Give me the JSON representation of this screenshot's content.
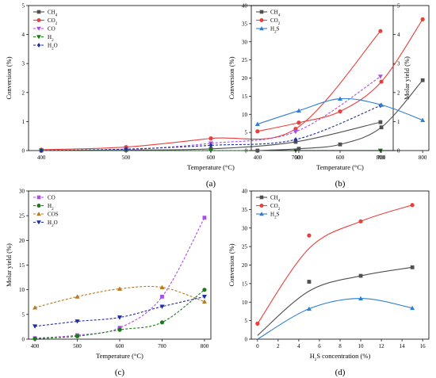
{
  "chart_data": [
    {
      "panel_label": "(a)",
      "type": "line",
      "xlabel": "Temperature (°C)",
      "ylabel": "Conversion (%)",
      "ylabel_right": "Molar yield (%)",
      "xlim": [
        400,
        800
      ],
      "ylim": [
        0,
        5
      ],
      "ylim_right": [
        0,
        5
      ],
      "xticks": [
        "400",
        "500",
        "600",
        "700",
        "800"
      ],
      "yticks": [
        "0",
        "1",
        "2",
        "3",
        "4",
        "5"
      ],
      "yticks_right": [
        "0",
        "1",
        "2",
        "3",
        "4",
        "5"
      ],
      "legend_position": "top-left",
      "series": [
        {
          "name": "CH4",
          "label_main": "CH",
          "label_sub": "4",
          "color": "#505050",
          "marker": "square",
          "dash": "solid",
          "smooth": true,
          "x": [
            400,
            500,
            600,
            700,
            800
          ],
          "y": [
            0.0,
            0.02,
            0.06,
            0.3,
            0.98
          ]
        },
        {
          "name": "CO2",
          "label_main": "CO",
          "label_sub": "2",
          "color": "#e8413c",
          "marker": "circle",
          "dash": "solid",
          "smooth": true,
          "x": [
            400,
            500,
            600,
            700,
            800
          ],
          "y": [
            0.03,
            0.12,
            0.42,
            0.75,
            4.12
          ]
        },
        {
          "name": "CO",
          "label_main": "CO",
          "label_sub": "",
          "color": "#a94ee6",
          "marker": "tri-down",
          "dash": "dashed",
          "smooth": true,
          "x": [
            400,
            500,
            600,
            700,
            800
          ],
          "y": [
            0.0,
            0.03,
            0.25,
            0.65,
            2.55
          ]
        },
        {
          "name": "H2",
          "label_main": "H",
          "label_sub": "2",
          "color": "#1a7a1a",
          "marker": "tri-down",
          "dash": "dashed",
          "smooth": true,
          "x": [
            400,
            500,
            600,
            700,
            800
          ],
          "y": [
            0.0,
            0.0,
            0.0,
            0.0,
            0.0
          ]
        },
        {
          "name": "H2O",
          "label_main": "H",
          "label_sub": "2",
          "label_tail": "O",
          "color": "#1f2fa0",
          "marker": "diamond",
          "dash": "dashed",
          "smooth": true,
          "x": [
            400,
            500,
            600,
            700,
            800
          ],
          "y": [
            0.0,
            0.05,
            0.18,
            0.38,
            1.55
          ]
        }
      ]
    },
    {
      "panel_label": "(b)",
      "type": "line",
      "xlabel": "Temperature (°C)",
      "ylabel": "Conversion (%)",
      "xlim": [
        400,
        800
      ],
      "ylim": [
        0,
        40
      ],
      "xticks": [
        "400",
        "500",
        "600",
        "700",
        "800"
      ],
      "yticks": [
        "0",
        "5",
        "10",
        "15",
        "20",
        "25",
        "30",
        "35",
        "40"
      ],
      "legend_position": "top-left",
      "series": [
        {
          "name": "CH4",
          "label_main": "CH",
          "label_sub": "4",
          "color": "#505050",
          "marker": "square",
          "dash": "solid",
          "smooth": true,
          "x": [
            400,
            500,
            600,
            700,
            800
          ],
          "y": [
            0.0,
            0.5,
            1.7,
            6.4,
            19.4
          ]
        },
        {
          "name": "CO2",
          "label_main": "CO",
          "label_sub": "2",
          "color": "#e8413c",
          "marker": "circle",
          "dash": "solid",
          "smooth": true,
          "x": [
            400,
            500,
            600,
            700,
            800
          ],
          "y": [
            5.3,
            7.7,
            10.8,
            19.0,
            36.2
          ]
        },
        {
          "name": "H2S",
          "label_main": "H",
          "label_sub": "2",
          "label_tail": "S",
          "color": "#2f7fd3",
          "marker": "tri-up",
          "dash": "solid",
          "smooth": true,
          "x": [
            400,
            500,
            600,
            700,
            800
          ],
          "y": [
            7.3,
            11.0,
            14.3,
            12.6,
            8.4
          ]
        }
      ]
    },
    {
      "panel_label": "(c)",
      "type": "line",
      "xlabel": "Temperature (°C)",
      "ylabel": "Molar yield (%)",
      "xlim": [
        400,
        800
      ],
      "ylim": [
        0,
        30
      ],
      "xticks": [
        "400",
        "500",
        "600",
        "700",
        "800"
      ],
      "yticks": [
        "0",
        "5",
        "10",
        "15",
        "20",
        "25",
        "30"
      ],
      "legend_position": "top-left",
      "series": [
        {
          "name": "CO",
          "label_main": "CO",
          "label_sub": "",
          "color": "#a94ee6",
          "marker": "square",
          "dash": "dashed",
          "smooth": true,
          "x": [
            400,
            500,
            600,
            700,
            800
          ],
          "y": [
            0.2,
            0.8,
            2.3,
            8.6,
            24.6
          ]
        },
        {
          "name": "H2",
          "label_main": "H",
          "label_sub": "2",
          "color": "#1a7a1a",
          "marker": "circle",
          "dash": "dashed",
          "smooth": true,
          "x": [
            400,
            500,
            600,
            700,
            800
          ],
          "y": [
            0.1,
            0.6,
            1.9,
            3.4,
            10.0
          ]
        },
        {
          "name": "COS",
          "label_main": "COS",
          "label_sub": "",
          "color": "#b87a1c",
          "marker": "tri-up",
          "dash": "dashed",
          "smooth": true,
          "x": [
            400,
            500,
            600,
            700,
            800
          ],
          "y": [
            6.4,
            8.6,
            10.2,
            10.5,
            7.6
          ]
        },
        {
          "name": "H2O",
          "label_main": "H",
          "label_sub": "2",
          "label_tail": "O",
          "color": "#1f2fa0",
          "marker": "tri-down",
          "dash": "dashed",
          "smooth": true,
          "x": [
            400,
            500,
            600,
            700,
            800
          ],
          "y": [
            2.6,
            3.6,
            4.4,
            6.6,
            8.6
          ]
        }
      ]
    },
    {
      "panel_label": "(d)",
      "type": "line",
      "xlabel": "H2S concentration (%)",
      "xlabel_main": "H",
      "xlabel_sub": "2",
      "xlabel_tail": "S concentration (%)",
      "ylabel": "Conversion (%)",
      "xlim": [
        0,
        16
      ],
      "ylim": [
        0,
        40
      ],
      "xticks": [
        "0",
        "2",
        "4",
        "6",
        "8",
        "10",
        "12",
        "14",
        "16"
      ],
      "yticks": [
        "0",
        "5",
        "10",
        "15",
        "20",
        "25",
        "30",
        "35",
        "40"
      ],
      "legend_position": "top-left",
      "series": [
        {
          "name": "CH4",
          "label_main": "CH",
          "label_sub": "4",
          "color": "#505050",
          "marker": "square",
          "dash": "solid",
          "smooth": true,
          "x": [
            5,
            10,
            15
          ],
          "y": [
            15.5,
            17.1,
            19.4
          ],
          "curve_x": [
            0,
            5,
            10,
            15
          ],
          "curve_y": [
            1.0,
            13.0,
            17.1,
            19.4
          ]
        },
        {
          "name": "CO2",
          "label_main": "CO",
          "label_sub": "2",
          "color": "#e8413c",
          "marker": "circle",
          "dash": "solid",
          "smooth": true,
          "x": [
            0,
            5,
            10,
            15
          ],
          "y": [
            4.2,
            28.0,
            31.8,
            36.2
          ],
          "curve_x": [
            0,
            5,
            10,
            15
          ],
          "curve_y": [
            4.2,
            24.5,
            31.8,
            36.2
          ]
        },
        {
          "name": "H2S",
          "label_main": "H",
          "label_sub": "2",
          "label_tail": "S",
          "color": "#2f7fd3",
          "marker": "tri-up",
          "dash": "solid",
          "smooth": true,
          "x": [
            5,
            10,
            15
          ],
          "y": [
            8.2,
            11.0,
            8.4
          ],
          "curve_x": [
            0,
            5,
            10,
            15
          ],
          "curve_y": [
            0.0,
            8.2,
            11.0,
            8.4
          ]
        }
      ]
    }
  ]
}
